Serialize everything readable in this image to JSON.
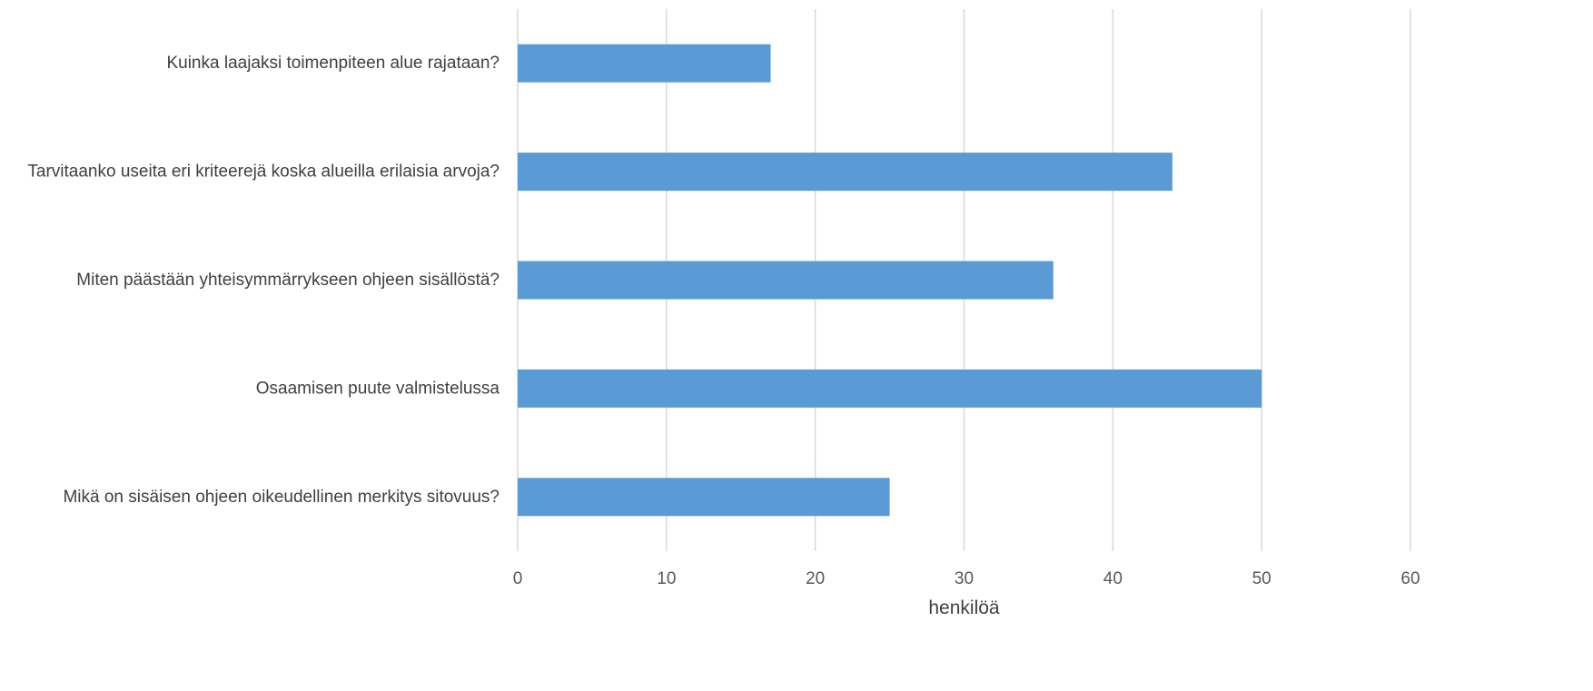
{
  "chart_data": {
    "type": "bar",
    "orientation": "horizontal",
    "categories": [
      "Kuinka laajaksi toimenpiteen alue rajataan?",
      "Tarvitaanko useita eri kriteerejä koska alueilla erilaisia arvoja?",
      "Miten päästään yhteisymmärrykseen ohjeen sisällöstä?",
      "Osaamisen puute valmistelussa",
      "Mikä on sisäisen ohjeen oikeudellinen merkitys sitovuus?"
    ],
    "values": [
      17,
      44,
      36,
      50,
      25
    ],
    "xlabel": "henkilöä",
    "ylabel": "",
    "xlim": [
      0,
      60
    ],
    "xticks": [
      0,
      10,
      20,
      30,
      40,
      50,
      60
    ],
    "xtick_labels": [
      "0",
      "10",
      "20",
      "30",
      "40",
      "50",
      "60"
    ],
    "grid": "vertical",
    "legend": "none",
    "bar_color": "#5B9BD5"
  }
}
